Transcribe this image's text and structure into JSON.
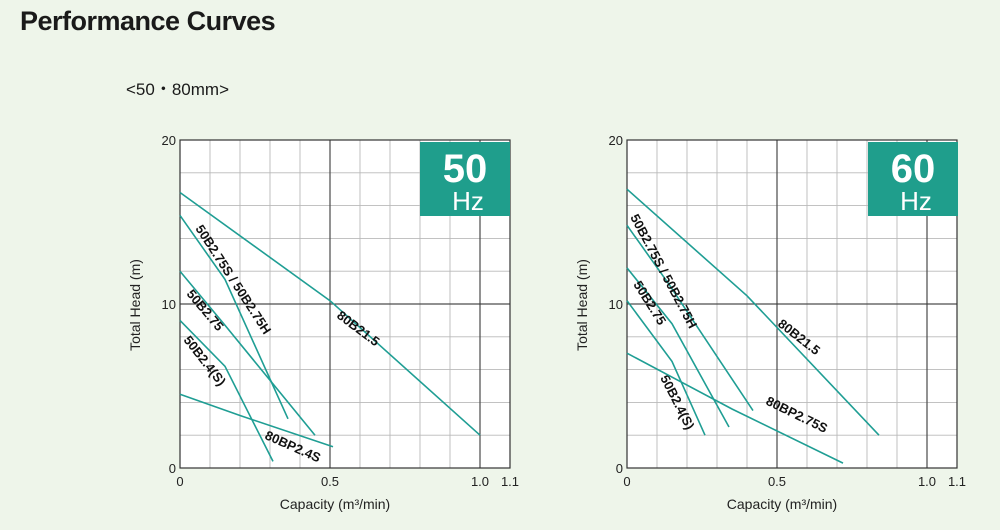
{
  "page": {
    "title": "Performance Curves",
    "subtitle": "<50・80mm>"
  },
  "colors": {
    "background": "#eef5ea",
    "grid": "#b9b9b9",
    "curve": "#1f9e94",
    "badge": "#1f9e8c"
  },
  "chart_data": [
    {
      "type": "line",
      "badge": {
        "number": "50",
        "unit": "Hz"
      },
      "xlabel": "Capacity (m³/min)",
      "ylabel": "Total Head (m)",
      "xlim": [
        0,
        1.1
      ],
      "ylim": [
        0,
        20
      ],
      "x_ticks": [
        "0",
        "0.5",
        "1.0",
        "1.1"
      ],
      "y_ticks": [
        "0",
        "10",
        "20"
      ],
      "grid": true,
      "series": [
        {
          "name": "80B21.5",
          "points": [
            [
              0,
              16.8
            ],
            [
              0.5,
              10.2
            ],
            [
              1.0,
              2.0
            ]
          ]
        },
        {
          "name": "50B2.75S / 50B2.75H",
          "points": [
            [
              0,
              15.4
            ],
            [
              0.15,
              11.5
            ],
            [
              0.36,
              3.0
            ]
          ]
        },
        {
          "name": "50B2.75",
          "points": [
            [
              0,
              12.0
            ],
            [
              0.15,
              8.7
            ],
            [
              0.45,
              2.0
            ]
          ]
        },
        {
          "name": "50B2.4(S)",
          "points": [
            [
              0,
              9.0
            ],
            [
              0.15,
              6.2
            ],
            [
              0.31,
              0.4
            ]
          ]
        },
        {
          "name": "80BP2.4S",
          "points": [
            [
              0,
              4.5
            ],
            [
              0.2,
              3.2
            ],
            [
              0.51,
              1.3
            ]
          ]
        }
      ]
    },
    {
      "type": "line",
      "badge": {
        "number": "60",
        "unit": "Hz"
      },
      "xlabel": "Capacity (m³/min)",
      "ylabel": "Total Head (m)",
      "xlim": [
        0,
        1.1
      ],
      "ylim": [
        0,
        20
      ],
      "x_ticks": [
        "0",
        "0.5",
        "1.0",
        "1.1"
      ],
      "y_ticks": [
        "0",
        "10",
        "20"
      ],
      "grid": true,
      "series": [
        {
          "name": "80B21.5",
          "points": [
            [
              0,
              17.0
            ],
            [
              0.4,
              10.5
            ],
            [
              0.84,
              2.0
            ]
          ]
        },
        {
          "name": "50B2.75S / 50B2.75H",
          "points": [
            [
              0,
              14.8
            ],
            [
              0.14,
              11.2
            ],
            [
              0.42,
              3.5
            ]
          ]
        },
        {
          "name": "50B2.75",
          "points": [
            [
              0,
              12.2
            ],
            [
              0.15,
              8.8
            ],
            [
              0.34,
              2.5
            ]
          ]
        },
        {
          "name": "50B2.4(S)",
          "points": [
            [
              0,
              10.2
            ],
            [
              0.15,
              6.5
            ],
            [
              0.26,
              2.0
            ]
          ]
        },
        {
          "name": "80BP2.75S",
          "points": [
            [
              0,
              7.0
            ],
            [
              0.35,
              3.6
            ],
            [
              0.72,
              0.3
            ]
          ]
        }
      ]
    }
  ]
}
